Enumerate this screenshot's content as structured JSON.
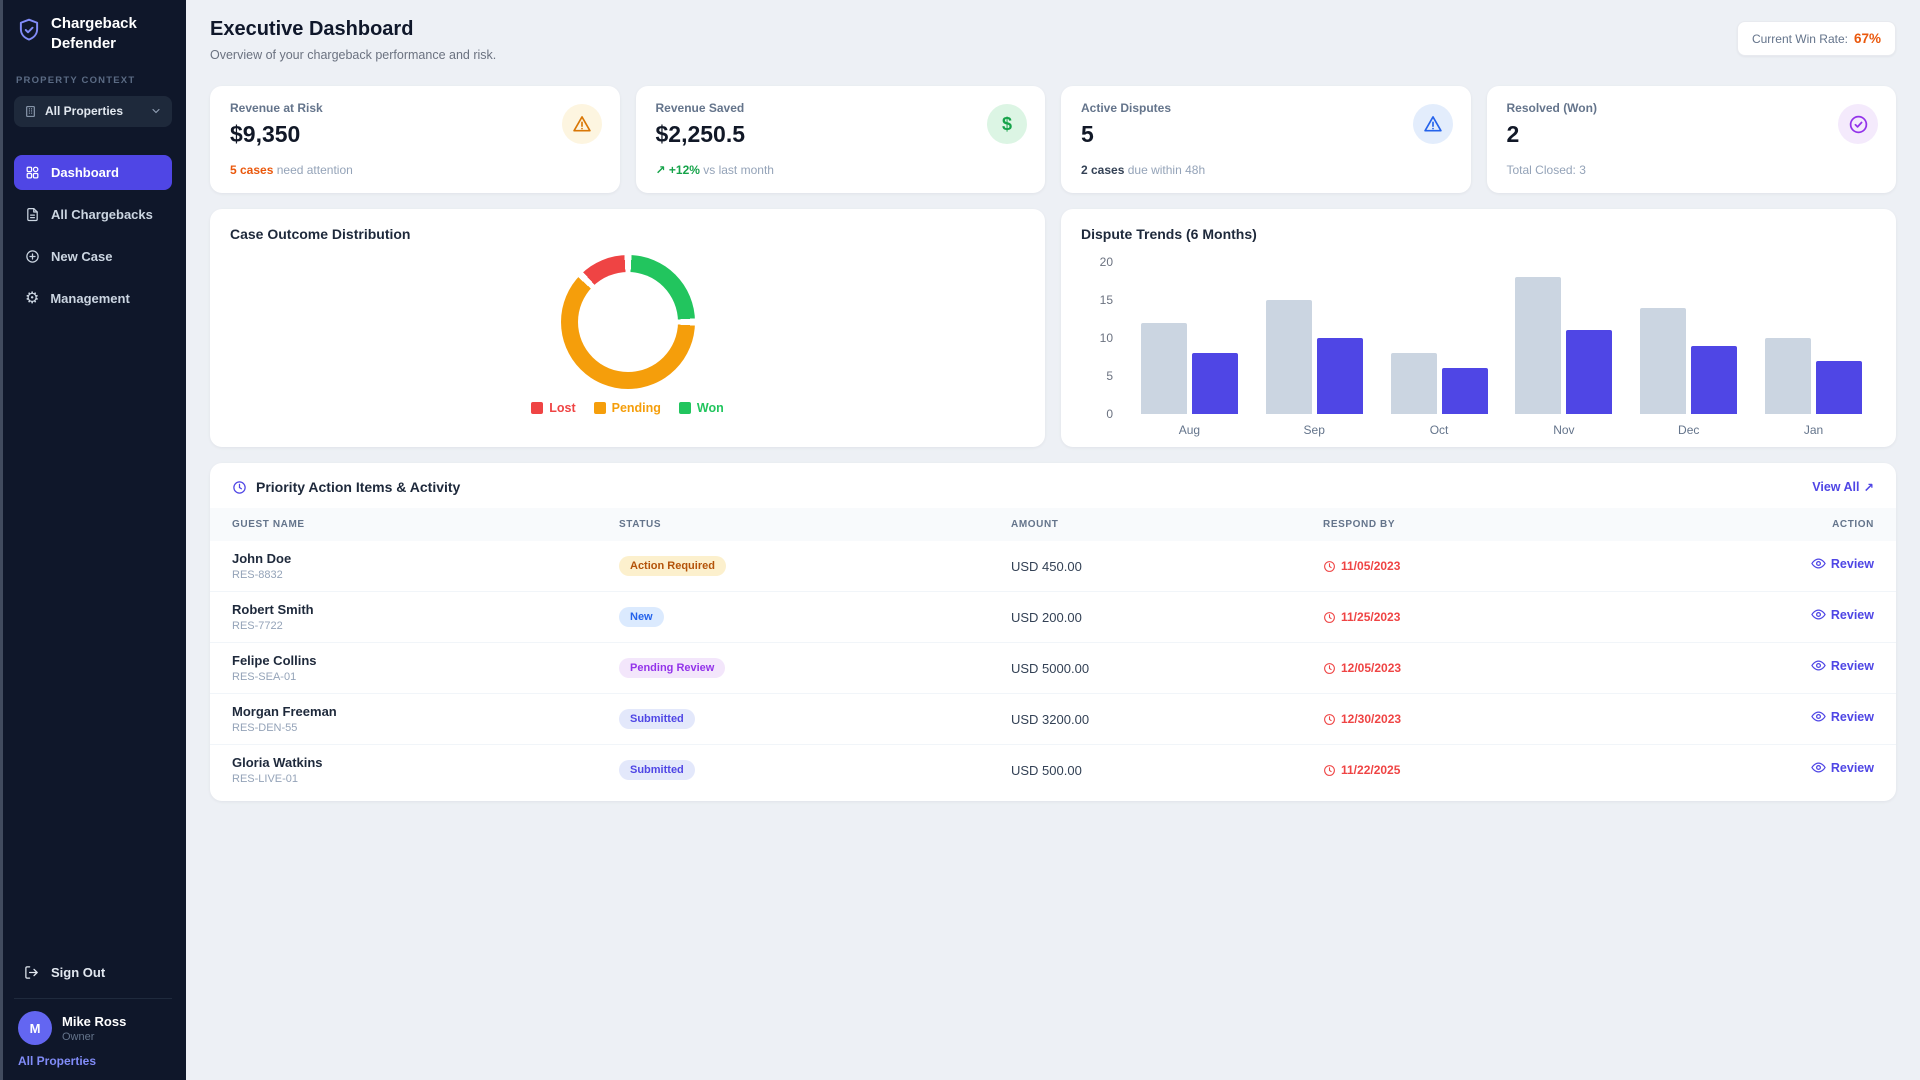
{
  "colors": {
    "accent": "#4f46e5",
    "sidebar_bg": "#0f172a",
    "danger": "#ef4444",
    "warning_orange": "#ea580c",
    "success_green": "#16a34a"
  },
  "app": {
    "name_line1": "Chargeback",
    "name_line2": "Defender"
  },
  "sidebar": {
    "section_label": "PROPERTY CONTEXT",
    "property_selector": "All Properties",
    "nav": [
      {
        "label": "Dashboard"
      },
      {
        "label": "All Chargebacks"
      },
      {
        "label": "New Case"
      },
      {
        "label": "Management"
      }
    ],
    "sign_out": "Sign Out",
    "user": {
      "initial": "M",
      "name": "Mike Ross",
      "role": "Owner",
      "context_link": "All Properties"
    }
  },
  "header": {
    "title": "Executive Dashboard",
    "subtitle": "Overview of your chargeback performance and risk.",
    "win_rate_label": "Current Win Rate:",
    "win_rate_value": "67%"
  },
  "stat_cards": [
    {
      "label": "Revenue at Risk",
      "value": "$9,350",
      "foot_strong": "5 cases",
      "foot_rest": " need attention",
      "strong_color": "#ea580c",
      "icon": "warning-triangle-icon",
      "icon_bg": "#fdf5e0"
    },
    {
      "label": "Revenue Saved",
      "value": "$2,250.5",
      "foot_strong": "↗ +12%",
      "foot_rest": " vs last month",
      "strong_color": "#16a34a",
      "icon": "dollar-icon",
      "icon_bg": "#dcf5e4"
    },
    {
      "label": "Active Disputes",
      "value": "5",
      "foot_strong": "2 cases",
      "foot_rest": " due within 48h",
      "strong_color": "#334155",
      "icon": "alert-triangle-icon",
      "icon_bg": "#e3edfc"
    },
    {
      "label": "Resolved (Won)",
      "value": "2",
      "foot_strong": "",
      "foot_rest": "Total Closed: 3",
      "strong_color": "#475569",
      "icon": "check-circle-icon",
      "icon_bg": "#f4eafc"
    }
  ],
  "chart_data": [
    {
      "type": "pie",
      "title": "Case Outcome Distribution",
      "legend_position": "bottom",
      "segments": [
        {
          "label": "Lost",
          "value": 1,
          "color": "#ef4444"
        },
        {
          "label": "Pending",
          "value": 5,
          "color": "#f59e0b"
        },
        {
          "label": "Won",
          "value": 2,
          "color": "#22c55e"
        }
      ]
    },
    {
      "type": "bar",
      "title": "Dispute Trends (6 Months)",
      "categories": [
        "Aug",
        "Sep",
        "Oct",
        "Nov",
        "Dec",
        "Jan"
      ],
      "series": [
        {
          "name": "series_1",
          "color": "#cbd5e1",
          "values": [
            12,
            15,
            8,
            18,
            14,
            10
          ]
        },
        {
          "name": "series_2",
          "color": "#4f46e5",
          "values": [
            8,
            10,
            6,
            11,
            9,
            7
          ]
        }
      ],
      "ylim": [
        0,
        20
      ],
      "yticks": [
        0,
        5,
        10,
        15,
        20
      ],
      "grid": false,
      "xlabel": "",
      "ylabel": ""
    }
  ],
  "table": {
    "title": "Priority Action Items & Activity",
    "view_all": "View All",
    "columns": [
      "GUEST NAME",
      "STATUS",
      "AMOUNT",
      "RESPOND BY",
      "ACTION"
    ],
    "rows": [
      {
        "name": "John Doe",
        "id": "RES-8832",
        "status": "Action Required",
        "amount": "USD 450.00",
        "respond_by": "11/05/2023",
        "action": "Review"
      },
      {
        "name": "Robert Smith",
        "id": "RES-7722",
        "status": "New",
        "amount": "USD 200.00",
        "respond_by": "11/25/2023",
        "action": "Review"
      },
      {
        "name": "Felipe Collins",
        "id": "RES-SEA-01",
        "status": "Pending Review",
        "amount": "USD 5000.00",
        "respond_by": "12/05/2023",
        "action": "Review"
      },
      {
        "name": "Morgan Freeman",
        "id": "RES-DEN-55",
        "status": "Submitted",
        "amount": "USD 3200.00",
        "respond_by": "12/30/2023",
        "action": "Review"
      },
      {
        "name": "Gloria Watkins",
        "id": "RES-LIVE-01",
        "status": "Submitted",
        "amount": "USD 500.00",
        "respond_by": "11/22/2025",
        "action": "Review"
      }
    ],
    "status_colors": {
      "Action Required": {
        "bg": "#fcf0cd",
        "fg": "#b45309"
      },
      "New": {
        "bg": "#dbeafe",
        "fg": "#2563eb"
      },
      "Pending Review": {
        "bg": "#f3e6fb",
        "fg": "#9333ea"
      },
      "Submitted": {
        "bg": "#e3e8fb",
        "fg": "#4f46e5"
      }
    }
  }
}
